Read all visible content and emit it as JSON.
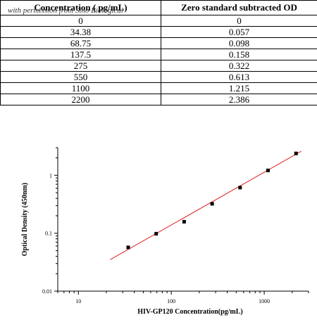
{
  "table": {
    "headers": [
      "Concentration ( pg/mL)",
      "Zero standard subtracted OD"
    ],
    "watermark": "with permission from Sino Biological",
    "rows": [
      [
        "0",
        "0"
      ],
      [
        "34.38",
        "0.057"
      ],
      [
        "68.75",
        "0.098"
      ],
      [
        "137.5",
        "0.158"
      ],
      [
        "275",
        "0.322"
      ],
      [
        "550",
        "0.613"
      ],
      [
        "1100",
        "1.215"
      ],
      [
        "2200",
        "2.386"
      ]
    ]
  },
  "chart_data": {
    "type": "scatter",
    "title": "",
    "xlabel": "HIV-GP120  Concentration(pg/mL)",
    "ylabel": "Optical Density (450nm)",
    "x_scale": "log",
    "y_scale": "log",
    "xlim": [
      6,
      3000
    ],
    "ylim": [
      0.01,
      3
    ],
    "x_ticks": [
      10,
      100,
      1000
    ],
    "y_ticks": [
      0.01,
      0.1,
      1
    ],
    "x_tick_labels": [
      "10",
      "100",
      "1000"
    ],
    "y_tick_labels": [
      "0.01",
      "0.1",
      "1"
    ],
    "grid": false,
    "points": [
      {
        "x": 34.38,
        "y": 0.057
      },
      {
        "x": 68.75,
        "y": 0.098
      },
      {
        "x": 137.5,
        "y": 0.158
      },
      {
        "x": 275,
        "y": 0.322
      },
      {
        "x": 550,
        "y": 0.613
      },
      {
        "x": 1100,
        "y": 1.215
      },
      {
        "x": 2200,
        "y": 2.386
      }
    ],
    "fit_line": {
      "x": [
        22,
        2500
      ],
      "y": [
        0.035,
        2.6
      ]
    },
    "colors": {
      "points": "#000000",
      "fit_line": "#e02020",
      "axes": "#000000"
    }
  }
}
